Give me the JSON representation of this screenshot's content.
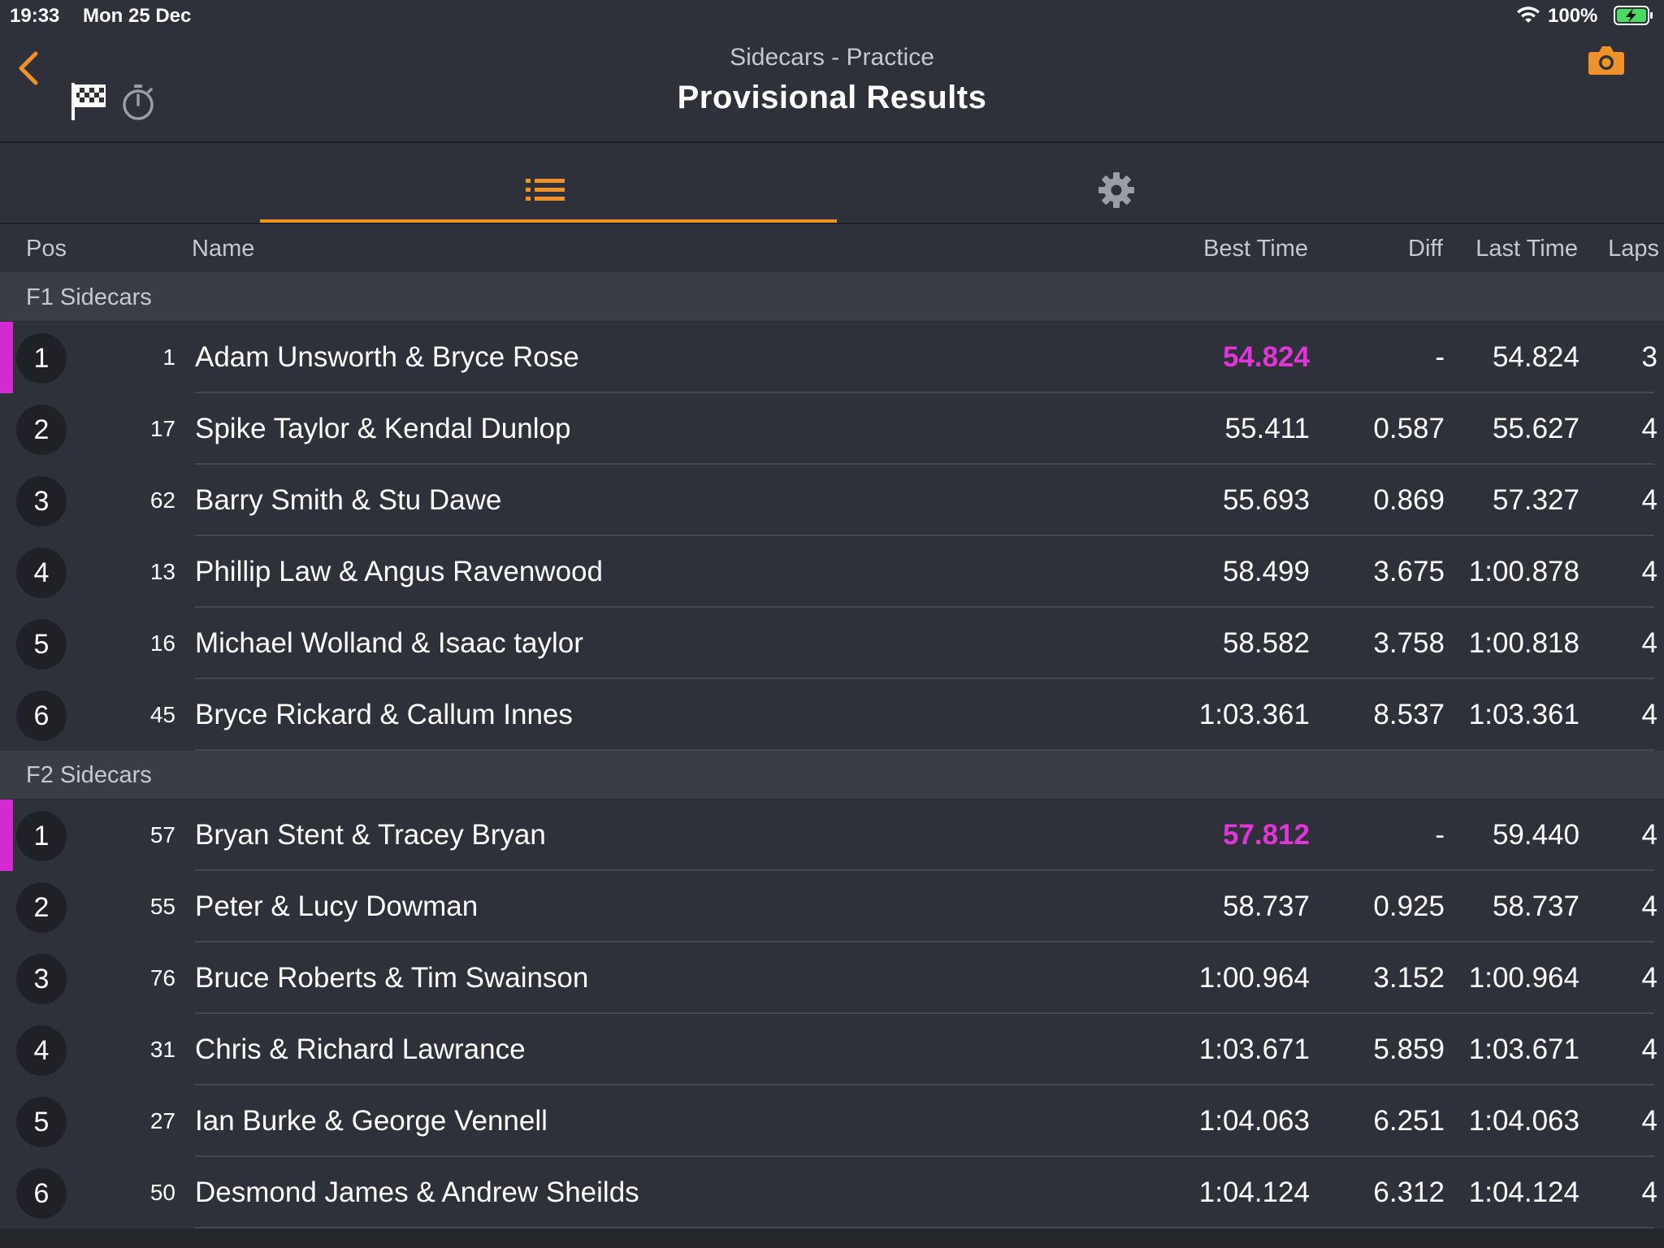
{
  "status_bar": {
    "time": "19:33",
    "date": "Mon 25 Dec",
    "battery_pct": "100%"
  },
  "header": {
    "subtitle": "Sidecars - Practice",
    "title": "Provisional Results"
  },
  "icons": {
    "back": "chevron-left-icon",
    "flag": "checkered-flag-icon",
    "timer": "stopwatch-icon",
    "camera": "camera-icon",
    "list": "list-icon",
    "settings": "gear-icon"
  },
  "colors": {
    "accent": "#f0922a",
    "fastest": "#e036d8",
    "leader_bar": "#d22bd0"
  },
  "columns": {
    "pos": "Pos",
    "name": "Name",
    "best": "Best Time",
    "diff": "Diff",
    "last": "Last Time",
    "laps": "Laps"
  },
  "sections": [
    {
      "title": "F1 Sidecars",
      "rows": [
        {
          "pos": "1",
          "num": "1",
          "name": "Adam Unsworth & Bryce Rose",
          "best": "54.824",
          "diff": "-",
          "last": "54.824",
          "laps": "3"
        },
        {
          "pos": "2",
          "num": "17",
          "name": "Spike Taylor & Kendal Dunlop",
          "best": "55.411",
          "diff": "0.587",
          "last": "55.627",
          "laps": "4"
        },
        {
          "pos": "3",
          "num": "62",
          "name": "Barry Smith & Stu Dawe",
          "best": "55.693",
          "diff": "0.869",
          "last": "57.327",
          "laps": "4"
        },
        {
          "pos": "4",
          "num": "13",
          "name": "Phillip Law & Angus Ravenwood",
          "best": "58.499",
          "diff": "3.675",
          "last": "1:00.878",
          "laps": "4"
        },
        {
          "pos": "5",
          "num": "16",
          "name": "Michael Wolland & Isaac taylor",
          "best": "58.582",
          "diff": "3.758",
          "last": "1:00.818",
          "laps": "4"
        },
        {
          "pos": "6",
          "num": "45",
          "name": "Bryce Rickard & Callum Innes",
          "best": "1:03.361",
          "diff": "8.537",
          "last": "1:03.361",
          "laps": "4"
        }
      ]
    },
    {
      "title": "F2 Sidecars",
      "rows": [
        {
          "pos": "1",
          "num": "57",
          "name": "Bryan Stent & Tracey Bryan",
          "best": "57.812",
          "diff": "-",
          "last": "59.440",
          "laps": "4"
        },
        {
          "pos": "2",
          "num": "55",
          "name": "Peter & Lucy Dowman",
          "best": "58.737",
          "diff": "0.925",
          "last": "58.737",
          "laps": "4"
        },
        {
          "pos": "3",
          "num": "76",
          "name": "Bruce Roberts & Tim Swainson",
          "best": "1:00.964",
          "diff": "3.152",
          "last": "1:00.964",
          "laps": "4"
        },
        {
          "pos": "4",
          "num": "31",
          "name": "Chris & Richard Lawrance",
          "best": "1:03.671",
          "diff": "5.859",
          "last": "1:03.671",
          "laps": "4"
        },
        {
          "pos": "5",
          "num": "27",
          "name": "Ian Burke & George Vennell",
          "best": "1:04.063",
          "diff": "6.251",
          "last": "1:04.063",
          "laps": "4"
        },
        {
          "pos": "6",
          "num": "50",
          "name": "Desmond James & Andrew Sheilds",
          "best": "1:04.124",
          "diff": "6.312",
          "last": "1:04.124",
          "laps": "4"
        }
      ]
    }
  ]
}
